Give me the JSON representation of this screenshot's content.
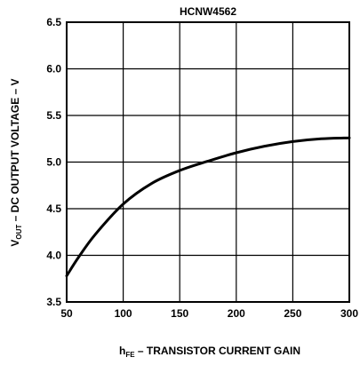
{
  "chart_data": {
    "type": "line",
    "title": "HCNW4562",
    "xlabel_main": "h",
    "xlabel_sub": "FE",
    "xlabel_rest": " – TRANSISTOR CURRENT GAIN",
    "ylabel_main": "V",
    "ylabel_sub": "OUT",
    "ylabel_rest": " – DC OUTPUT VOLTAGE – V",
    "xlim": [
      50,
      300
    ],
    "ylim": [
      3.5,
      6.5
    ],
    "x_ticks": [
      "50",
      "100",
      "150",
      "200",
      "250",
      "300"
    ],
    "y_ticks": [
      "3.5",
      "4.0",
      "4.5",
      "5.0",
      "5.5",
      "6.0",
      "6.5"
    ],
    "grid": true,
    "series": [
      {
        "x": [
          50,
          60,
          75,
          100,
          125,
          150,
          175,
          200,
          225,
          250,
          275,
          300
        ],
        "y": [
          3.78,
          3.97,
          4.22,
          4.55,
          4.77,
          4.91,
          5.01,
          5.1,
          5.17,
          5.22,
          5.25,
          5.26
        ]
      }
    ]
  }
}
